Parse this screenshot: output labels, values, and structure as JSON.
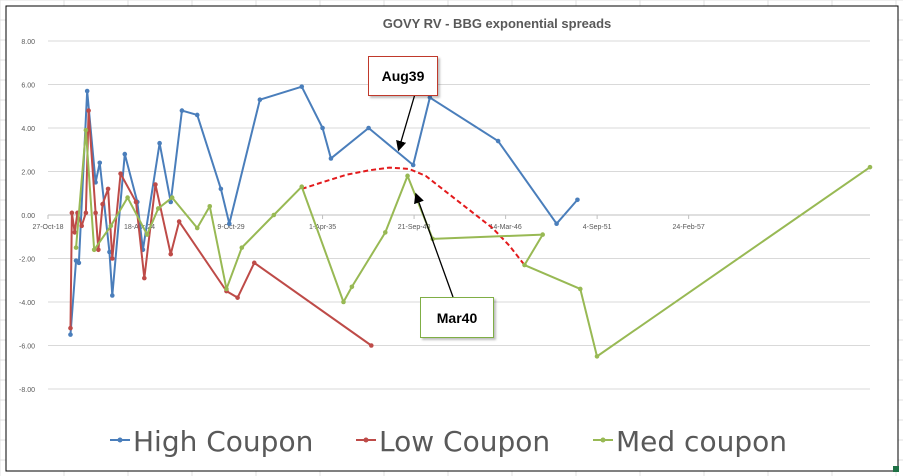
{
  "chart_data": {
    "type": "scatter",
    "title": "GOVY RV - BBG exponential spreads",
    "xlabel": "",
    "ylabel": "",
    "x_min": "1918-10-27",
    "x_max": "1968-01-01",
    "x_ticks": [
      "1918-10-27",
      "1924-04-18",
      "1929-10-09",
      "1935-04-01",
      "1940-09-21",
      "1946-03-14",
      "1951-09-04",
      "1957-02-24"
    ],
    "x_tick_labels": [
      "27-Oct-18",
      "18-Apr-24",
      "9-Oct-29",
      "1-Apr-35",
      "21-Sep-40",
      "14-Mar-46",
      "4-Sep-51",
      "24-Feb-57"
    ],
    "ylim": [
      -8,
      8
    ],
    "y_tick_labels": [
      "8.00",
      "6.00",
      "4.00",
      "2.00",
      "0.00",
      "-2.00",
      "-4.00",
      "-6.00",
      "-8.00"
    ],
    "legend_position": "bottom",
    "series": [
      {
        "name": "High Coupon",
        "color": "#4a7ebb",
        "markers": true,
        "points": [
          [
            "1920-03-01",
            -5.5
          ],
          [
            "1920-07-01",
            -2.1
          ],
          [
            "1920-09-01",
            -2.2
          ],
          [
            "1921-03-01",
            5.7
          ],
          [
            "1921-09-01",
            1.5
          ],
          [
            "1921-12-01",
            2.4
          ],
          [
            "1922-07-01",
            -1.7
          ],
          [
            "1922-09-01",
            -3.7
          ],
          [
            "1923-06-01",
            2.8
          ],
          [
            "1924-03-01",
            0.6
          ],
          [
            "1924-07-01",
            -1.6
          ],
          [
            "1925-07-01",
            3.3
          ],
          [
            "1926-03-01",
            0.6
          ],
          [
            "1926-11-01",
            4.8
          ],
          [
            "1927-10-01",
            4.6
          ],
          [
            "1929-03-01",
            1.2
          ],
          [
            "1929-09-01",
            -0.4
          ],
          [
            "1931-07-01",
            5.3
          ],
          [
            "1934-01-01",
            5.9
          ],
          [
            "1935-04-01",
            4.0
          ],
          [
            "1935-10-01",
            2.6
          ],
          [
            "1938-01-01",
            4.0
          ],
          [
            "1940-09-01",
            2.3
          ],
          [
            "1941-09-01",
            5.4
          ],
          [
            "1945-10-01",
            3.4
          ],
          [
            "1949-04-01",
            -0.4
          ],
          [
            "1950-07-01",
            0.7
          ]
        ]
      },
      {
        "name": "Low Coupon",
        "color": "#be4b48",
        "markers": true,
        "points": [
          [
            "1920-03-01",
            -5.2
          ],
          [
            "1920-04-01",
            0.1
          ],
          [
            "1920-06-01",
            -0.8
          ],
          [
            "1920-08-01",
            0.1
          ],
          [
            "1920-11-01",
            -0.5
          ],
          [
            "1921-02-01",
            0.1
          ],
          [
            "1921-04-01",
            4.8
          ],
          [
            "1921-09-01",
            0.1
          ],
          [
            "1921-11-01",
            -1.6
          ],
          [
            "1922-02-01",
            0.5
          ],
          [
            "1922-06-01",
            1.2
          ],
          [
            "1922-09-01",
            -2.0
          ],
          [
            "1923-03-01",
            1.9
          ],
          [
            "1924-02-01",
            0.6
          ],
          [
            "1924-08-01",
            -2.9
          ],
          [
            "1925-04-01",
            1.4
          ],
          [
            "1926-03-01",
            -1.8
          ],
          [
            "1926-09-01",
            -0.3
          ],
          [
            "1929-07-01",
            -3.5
          ],
          [
            "1930-03-01",
            -3.8
          ],
          [
            "1931-03-01",
            -2.2
          ],
          [
            "1938-03-01",
            -6.0
          ]
        ]
      },
      {
        "name": "Med coupon",
        "color": "#98b954",
        "markers": true,
        "points": [
          [
            "1920-07-01",
            -1.5
          ],
          [
            "1921-02-01",
            3.9
          ],
          [
            "1921-08-01",
            -1.6
          ],
          [
            "1922-08-01",
            -0.5
          ],
          [
            "1923-08-01",
            0.8
          ],
          [
            "1924-10-01",
            -0.9
          ],
          [
            "1925-06-01",
            0.3
          ],
          [
            "1926-04-01",
            0.8
          ],
          [
            "1927-10-01",
            -0.6
          ],
          [
            "1928-07-01",
            0.4
          ],
          [
            "1929-07-01",
            -3.4
          ],
          [
            "1930-06-01",
            -1.5
          ],
          [
            "1932-05-01",
            0.0
          ],
          [
            "1934-01-01",
            1.3
          ],
          [
            "1936-07-01",
            -4.0
          ],
          [
            "1937-01-01",
            -3.3
          ],
          [
            "1939-01-01",
            -0.8
          ],
          [
            "1940-05-01",
            1.8
          ],
          [
            "1941-11-01",
            -1.1
          ],
          [
            "1948-06-01",
            -0.9
          ],
          [
            "1947-05-01",
            -2.3
          ],
          [
            "1950-09-01",
            -3.4
          ],
          [
            "1951-09-01",
            -6.5
          ],
          [
            "1968-01-01",
            2.2
          ]
        ]
      }
    ],
    "annotations": [
      {
        "label": "Aug39",
        "border_color": "#c0392b",
        "points_to": [
          "1940-10-01",
          2.8
        ]
      },
      {
        "label": "Mar40",
        "border_color": "#7fae45",
        "points_to": [
          "1941-04-01",
          1.2
        ]
      }
    ],
    "dashed_curve": {
      "color": "#e31a1c",
      "points": [
        [
          "1934-01-01",
          1.2
        ],
        [
          "1935-06-01",
          1.55
        ],
        [
          "1936-09-01",
          1.85
        ],
        [
          "1938-01-01",
          2.05
        ],
        [
          "1939-04-01",
          2.18
        ],
        [
          "1940-06-01",
          2.12
        ],
        [
          "1941-06-01",
          1.8
        ],
        [
          "1942-06-01",
          1.2
        ],
        [
          "1943-06-01",
          0.6
        ],
        [
          "1944-06-01",
          0.0
        ],
        [
          "1945-06-01",
          -0.6
        ],
        [
          "1946-06-01",
          -1.4
        ],
        [
          "1947-05-01",
          -2.3
        ]
      ]
    }
  }
}
